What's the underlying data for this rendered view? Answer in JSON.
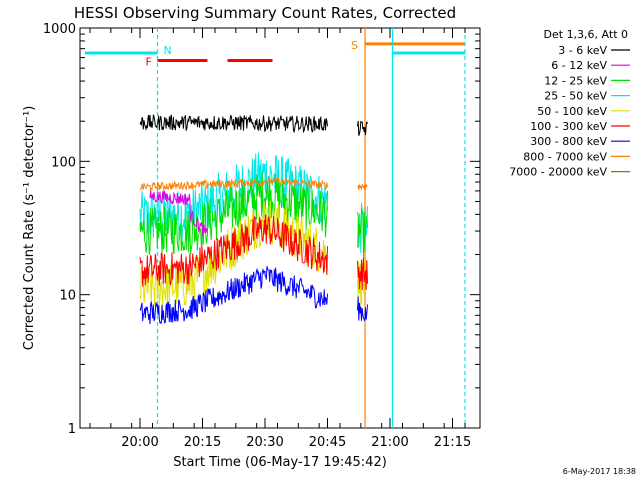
{
  "chart_data": {
    "type": "line",
    "title": "HESSI Observing Summary Count Rates, Corrected",
    "xlabel": "Start Time (06-May-17 19:45:42)",
    "ylabel": "Corrected Count Rate (s⁻¹ detector⁻¹)",
    "yscale": "log",
    "ylim": [
      1,
      1000
    ],
    "xlim_minutes": [
      19.76,
      21.36
    ],
    "x_ticks": [
      {
        "label": "20:00",
        "t": 20.0
      },
      {
        "label": "20:15",
        "t": 20.25
      },
      {
        "label": "20:30",
        "t": 20.5
      },
      {
        "label": "20:45",
        "t": 20.75
      },
      {
        "label": "21:00",
        "t": 21.0
      },
      {
        "label": "21:15",
        "t": 21.25
      }
    ],
    "y_ticks": [
      {
        "label": "1",
        "v": 1
      },
      {
        "label": "10",
        "v": 10
      },
      {
        "label": "100",
        "v": 100
      },
      {
        "label": "1000",
        "v": 1000
      }
    ],
    "legend": {
      "header": "Det 1,3,6, Att 0",
      "placement": "top-right outside"
    },
    "series": [
      {
        "name": "3 - 6 keV",
        "color": "#000000",
        "segments": [
          [
            20.0,
            20.31,
            195,
            195
          ],
          [
            20.31,
            20.75,
            195,
            190
          ]
        ],
        "late": [
          [
            20.87,
            20.91,
            175,
            175
          ]
        ],
        "noise": 0.06
      },
      {
        "name": "6 - 12 keV",
        "color": "#e000e0",
        "segments": [
          [
            20.04,
            20.2,
            55,
            52
          ],
          [
            20.2,
            20.27,
            40,
            28
          ]
        ],
        "late": [],
        "noise": 0.05
      },
      {
        "name": "12 - 25 keV",
        "color": "#00e000",
        "segments": [
          [
            20.0,
            20.2,
            30,
            30
          ],
          [
            20.2,
            20.5,
            30,
            58
          ],
          [
            20.5,
            20.75,
            58,
            40
          ]
        ],
        "late": [
          [
            20.87,
            20.91,
            30,
            28
          ]
        ],
        "noise": 0.18
      },
      {
        "name": "25 - 50 keV",
        "color": "#00e8e8",
        "segments": [
          [
            20.0,
            20.2,
            38,
            40
          ],
          [
            20.2,
            20.5,
            40,
            80
          ],
          [
            20.5,
            20.75,
            80,
            50
          ]
        ],
        "late": [
          [
            20.87,
            20.91,
            32,
            30
          ]
        ],
        "noise": 0.2
      },
      {
        "name": "50 - 100 keV",
        "color": "#e0e000",
        "segments": [
          [
            20.0,
            20.2,
            11,
            12
          ],
          [
            20.2,
            20.5,
            12,
            38
          ],
          [
            20.5,
            20.75,
            38,
            20
          ]
        ],
        "late": [
          [
            20.87,
            20.91,
            13,
            12
          ]
        ],
        "noise": 0.18
      },
      {
        "name": "100 - 300 keV",
        "color": "#ff0000",
        "segments": [
          [
            20.0,
            20.2,
            15,
            16
          ],
          [
            20.2,
            20.5,
            16,
            32
          ],
          [
            20.5,
            20.75,
            32,
            18
          ]
        ],
        "late": [
          [
            20.87,
            20.91,
            15,
            14
          ]
        ],
        "noise": 0.13
      },
      {
        "name": "300 - 800 keV",
        "color": "#0000ff",
        "segments": [
          [
            20.0,
            20.2,
            7.2,
            7.8
          ],
          [
            20.2,
            20.5,
            7.8,
            14
          ],
          [
            20.5,
            20.75,
            14,
            9
          ]
        ],
        "late": [
          [
            20.87,
            20.91,
            8,
            7
          ]
        ],
        "noise": 0.09
      },
      {
        "name": "800 - 7000 keV",
        "color": "#ff8000",
        "segments": [
          [
            20.0,
            20.5,
            64,
            70
          ],
          [
            20.5,
            20.75,
            72,
            66
          ]
        ],
        "late": [
          [
            20.87,
            20.91,
            65,
            65
          ]
        ],
        "noise": 0.03
      },
      {
        "name": "7000 - 20000 keV",
        "color": "#a07000",
        "segments": [],
        "late": [],
        "noise": 0
      }
    ],
    "annotations": [
      {
        "label": "N",
        "color": "#00e8e8",
        "kind": "night",
        "bar": [
          19.78,
          20.07,
          650
        ],
        "line_t": 20.07
      },
      {
        "label": "F",
        "color": "#ff0000",
        "kind": "flare",
        "bars": [
          [
            20.07,
            20.27,
            570
          ],
          [
            20.35,
            20.53,
            570
          ]
        ]
      },
      {
        "label": "S",
        "color": "#ff8000",
        "kind": "saa",
        "bar": [
          20.9,
          21.3,
          760
        ],
        "line_t": 20.9
      },
      {
        "label": "",
        "color": "#00e8e8",
        "kind": "night",
        "bar": [
          21.01,
          21.3,
          650
        ],
        "line_t": 21.01
      },
      {
        "label": "",
        "color": "#00e8e8",
        "kind": "night-end",
        "line_t": 21.3,
        "dashed": true
      }
    ],
    "footer_date": "6-May-2017 18:38"
  }
}
